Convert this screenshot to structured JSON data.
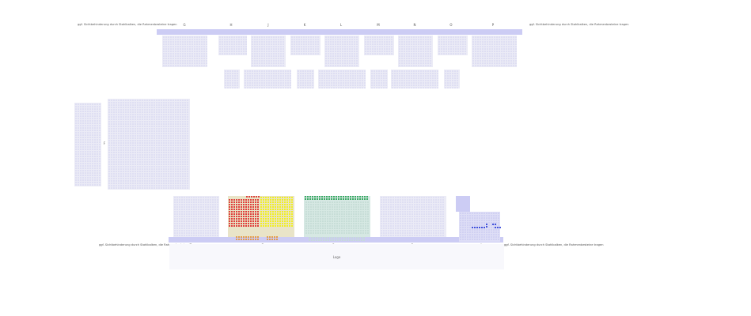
{
  "notes": {
    "top_left": "ggf. Sichtbehinderung durch Stahlbalken, die Rahmenbesteine tragen",
    "top_right": "ggf. Sichtbehinderung durch Stahlbalken, die Rahmenbesteine tragen",
    "bottom_left": "ggf. Sichtbehinderung durch Stahlbalken, die Rahmenbesteine tragen",
    "bottom_right": "ggf. Sichtbehinderung durch Stahlbalken, die Rahmenbesteine tragen"
  },
  "top_blocks": [
    "G",
    "H",
    "J",
    "K",
    "L",
    "M",
    "N",
    "O",
    "P"
  ],
  "left_block": "F",
  "bottom_blocks": [
    "E",
    "D",
    "C",
    "B",
    "A"
  ],
  "stage": {
    "label": "Loge"
  },
  "colors": {
    "available": "#eaeaf8",
    "red": "#dd1a1a",
    "yellow": "#f2f000",
    "green": "#169a46",
    "blue": "#1f33d6",
    "orange": "#e6902a",
    "sold_light": "#e9e4c8",
    "teal_light": "#d6e8e3",
    "lavender": "#ccccf4"
  }
}
